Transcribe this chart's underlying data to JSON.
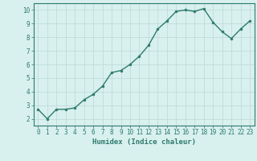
{
  "x": [
    0,
    1,
    2,
    3,
    4,
    5,
    6,
    7,
    8,
    9,
    10,
    11,
    12,
    13,
    14,
    15,
    16,
    17,
    18,
    19,
    20,
    21,
    22,
    23
  ],
  "y": [
    2.7,
    2.0,
    2.7,
    2.7,
    2.8,
    3.4,
    3.8,
    4.4,
    5.4,
    5.55,
    6.0,
    6.6,
    7.4,
    8.6,
    9.2,
    9.9,
    10.0,
    9.9,
    10.1,
    9.1,
    8.4,
    7.9,
    8.6,
    9.2
  ],
  "line_color": "#2e7b6e",
  "marker": "o",
  "marker_size": 2.0,
  "line_width": 1.0,
  "xlabel": "Humidex (Indice chaleur)",
  "xlim": [
    -0.5,
    23.5
  ],
  "ylim": [
    1.5,
    10.5
  ],
  "yticks": [
    2,
    3,
    4,
    5,
    6,
    7,
    8,
    9,
    10
  ],
  "xticks": [
    0,
    1,
    2,
    3,
    4,
    5,
    6,
    7,
    8,
    9,
    10,
    11,
    12,
    13,
    14,
    15,
    16,
    17,
    18,
    19,
    20,
    21,
    22,
    23
  ],
  "bg_color": "#d8f0ee",
  "grid_color": "#c0ddd9",
  "tick_color": "#2e7b6e",
  "label_color": "#2e7b6e",
  "xlabel_fontsize": 6.5,
  "tick_fontsize": 5.5
}
